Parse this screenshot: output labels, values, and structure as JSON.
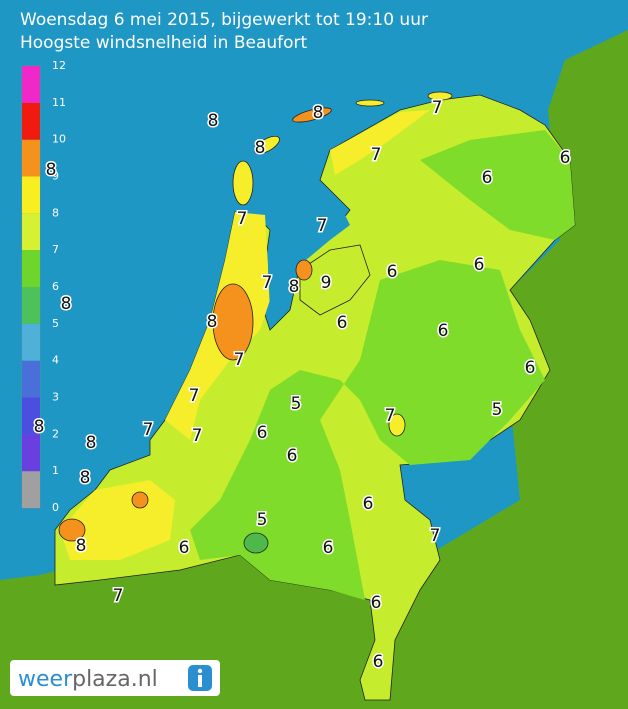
{
  "header": {
    "title": "Woensdag 6 mei 2015, bijgewerkt tot 19:10 uur",
    "subtitle": "Hoogste windsnelheid in Beaufort"
  },
  "legend": {
    "labels": [
      0,
      1,
      2,
      3,
      4,
      5,
      6,
      7,
      8,
      9,
      10,
      11,
      12
    ]
  },
  "map": {
    "labels": [
      8,
      8,
      7,
      8,
      7,
      6,
      6,
      7,
      7,
      6,
      6,
      7,
      8,
      9,
      8,
      8,
      6,
      6,
      7,
      6,
      7,
      5,
      7,
      5,
      7,
      7,
      8,
      8,
      6,
      6,
      8,
      8,
      6,
      5,
      7,
      6,
      6,
      8,
      7,
      6,
      6
    ]
  },
  "logo": {
    "parts": [
      "weer",
      "plaza.nl"
    ]
  }
}
